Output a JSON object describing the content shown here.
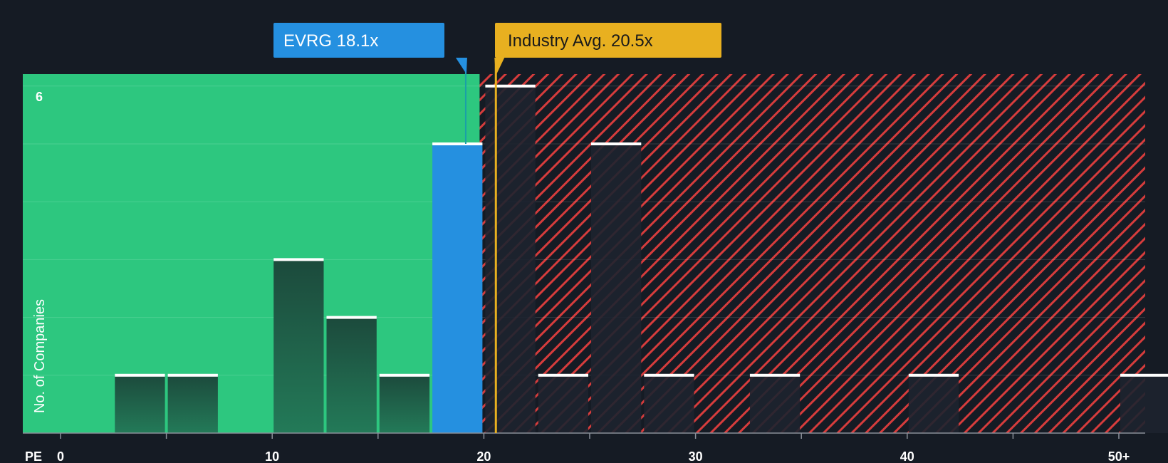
{
  "chart_data": {
    "type": "bar",
    "x_axis_label": "PE",
    "y_axis_label": "No. of Companies",
    "x_ticks": [
      "0",
      "10",
      "20",
      "30",
      "40",
      "50+"
    ],
    "y_ticks": [
      "6"
    ],
    "xlim": [
      0,
      51.5
    ],
    "ylim": [
      0,
      6.2
    ],
    "bin_width": 2.5,
    "bins": [
      {
        "x_start": 2.5,
        "count": 1
      },
      {
        "x_start": 5,
        "count": 1
      },
      {
        "x_start": 10,
        "count": 3
      },
      {
        "x_start": 12.5,
        "count": 2
      },
      {
        "x_start": 15,
        "count": 1
      },
      {
        "x_start": 17.5,
        "count": 5,
        "highlight": true
      },
      {
        "x_start": 20,
        "count": 6
      },
      {
        "x_start": 22.5,
        "count": 1
      },
      {
        "x_start": 25,
        "count": 5
      },
      {
        "x_start": 27.5,
        "count": 1
      },
      {
        "x_start": 32.5,
        "count": 1
      },
      {
        "x_start": 40,
        "count": 1
      },
      {
        "x_start": 50,
        "count": 1
      }
    ],
    "company": {
      "label": "EVRG 18.1x",
      "value": 18.1
    },
    "industry_avg": {
      "label": "Industry Avg. 20.5x",
      "value": 20.5
    },
    "colors": {
      "background": "#151b24",
      "fair_zone": "#2dc77f",
      "over_zone_stripe": "#d63c3c",
      "company": "#2590e0",
      "industry": "#e8b020",
      "bar_in_green": "#1c4a3c",
      "bar_in_red": "#1d232f",
      "bar_cap": "#ffffff"
    }
  }
}
